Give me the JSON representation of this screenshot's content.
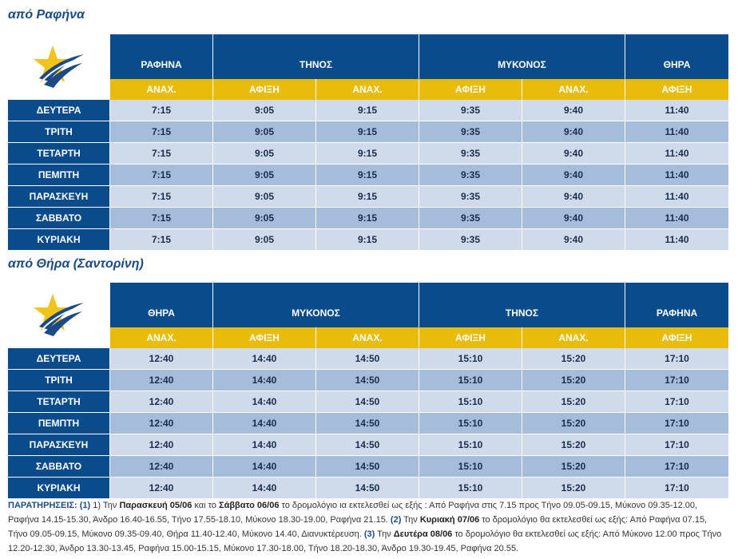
{
  "section1": {
    "title": "από Ραφήνα",
    "ports": [
      "ΡΑΦΗΝΑ",
      "ΤΗΝΟΣ",
      "ΜΥΚΟΝΟΣ",
      "ΘΗΡΑ"
    ],
    "subheaders": [
      "ΑΝΑΧ.",
      "ΑΦΙΞΗ",
      "ΑΝΑΧ.",
      "ΑΦΙΞΗ",
      "ΑΝΑΧ.",
      "ΑΦΙΞΗ"
    ],
    "rows": [
      {
        "day": "ΔΕΥΤΕΡΑ",
        "times": [
          "7:15",
          "9:05",
          "9:15",
          "9:35",
          "9:40",
          "11:40"
        ]
      },
      {
        "day": "ΤΡΙΤΗ",
        "times": [
          "7:15",
          "9:05",
          "9:15",
          "9:35",
          "9:40",
          "11:40"
        ]
      },
      {
        "day": "ΤΕΤΑΡΤΗ",
        "times": [
          "7:15",
          "9:05",
          "9:15",
          "9:35",
          "9:40",
          "11:40"
        ]
      },
      {
        "day": "ΠΕΜΠΤΗ",
        "times": [
          "7:15",
          "9:05",
          "9:15",
          "9:35",
          "9:40",
          "11:40"
        ]
      },
      {
        "day": "ΠΑΡΑΣΚΕΥΗ",
        "times": [
          "7:15",
          "9:05",
          "9:15",
          "9:35",
          "9:40",
          "11:40"
        ]
      },
      {
        "day": "ΣΑΒΒΑΤΟ",
        "times": [
          "7:15",
          "9:05",
          "9:15",
          "9:35",
          "9:40",
          "11:40"
        ]
      },
      {
        "day": "ΚΥΡΙΑΚΗ",
        "times": [
          "7:15",
          "9:05",
          "9:15",
          "9:35",
          "9:40",
          "11:40"
        ]
      }
    ]
  },
  "section2": {
    "title": "από Θήρα (Σαντορίνη)",
    "ports": [
      "ΘΗΡΑ",
      "ΜΥΚΟΝΟΣ",
      "ΤΗΝΟΣ",
      "ΡΑΦΗΝΑ"
    ],
    "subheaders": [
      "ΑΝΑΧ.",
      "ΑΦΙΞΗ",
      "ΑΝΑΧ.",
      "ΑΦΙΞΗ",
      "ΑΝΑΧ.",
      "ΑΦΙΞΗ"
    ],
    "rows": [
      {
        "day": "ΔΕΥΤΕΡΑ",
        "times": [
          "12:40",
          "14:40",
          "14:50",
          "15:10",
          "15:20",
          "17:10"
        ]
      },
      {
        "day": "ΤΡΙΤΗ",
        "times": [
          "12:40",
          "14:40",
          "14:50",
          "15:10",
          "15:20",
          "17:10"
        ]
      },
      {
        "day": "ΤΕΤΑΡΤΗ",
        "times": [
          "12:40",
          "14:40",
          "14:50",
          "15:10",
          "15:20",
          "17:10"
        ]
      },
      {
        "day": "ΠΕΜΠΤΗ",
        "times": [
          "12:40",
          "14:40",
          "14:50",
          "15:10",
          "15:20",
          "17:10"
        ]
      },
      {
        "day": "ΠΑΡΑΣΚΕΥΗ",
        "times": [
          "12:40",
          "14:40",
          "14:50",
          "15:10",
          "15:20",
          "17:10"
        ]
      },
      {
        "day": "ΣΑΒΒΑΤΟ",
        "times": [
          "12:40",
          "14:40",
          "14:50",
          "15:10",
          "15:20",
          "17:10"
        ]
      },
      {
        "day": "ΚΥΡΙΑΚΗ",
        "times": [
          "12:40",
          "14:40",
          "14:50",
          "15:10",
          "15:20",
          "17:10"
        ]
      }
    ]
  },
  "notes": {
    "label": "ΠΑΡΑΤΗΡΗΣΕΙΣ:",
    "n1": "(1)",
    "t1a": " 1) Την ",
    "b1a": "Παρασκευή 05/06",
    "t1b": " και το ",
    "b1b": "Σάββατο 06/06",
    "t1c": " το δρομολόγιο ια εκτελεσθεί ως εξής : Από Ραφήνα στις 7.15 προς Τήνο 09.05-09.15, Μύκονο 09.35-12.00, Ραφήνα 14.15-15.30, Άνδρο 16.40-16.55, Τήνο 17.55-18.10, Μύκονο 18.30-19.00, Ραφήνα 21.15. ",
    "n2": "(2)",
    "t2a": " Την ",
    "b2": "Κυριακή 07/06",
    "t2b": " το δρομολόγιο θα εκτελεσθεί ως εξής: Από Ραφήνα 07.15, Τήνο 09.05-09.15, Μύκονο 09.35-09.40, Θήρα 11.40-12.40, Μύκονο 14.40, Διανυκτέρευση. ",
    "n3": "(3)",
    "t3a": " Την ",
    "b3": "Δευτέρα 08/06",
    "t3b": " το δρομολόγιο θα εκτελεσθεί ως εξής: Από Μύκονο 12.00 προς Τήνο 12.20-12.30, Άνδρο 13.30-13.45, Ραφήνα 15.00-15.15, Μύκονο 17.30-18.00, Τήνο 18.20-18.30, Άνδρο 19.30-19.45, Ραφήνα 20.55.",
    "colors": {
      "navy": "#0a4b8c",
      "gold": "#e9bb0a",
      "light_row": "#cfdaeb",
      "dark_row": "#a6bcdb"
    }
  }
}
